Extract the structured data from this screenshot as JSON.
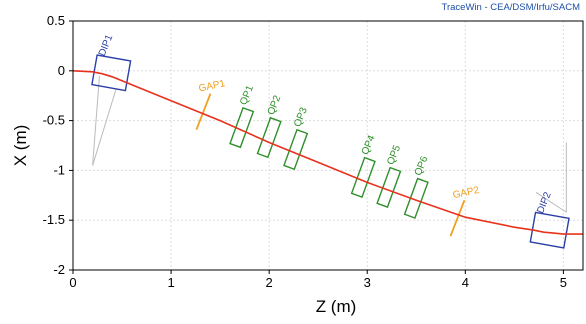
{
  "credit": "TraceWin - CEA/DSM/Irfu/SACM",
  "colors": {
    "beamline": "#e8321e",
    "dipole": "#2b3fa8",
    "quad": "#2f8f2a",
    "gap": "#f0a020",
    "guide": "#bbbbbb"
  },
  "chart_data": {
    "type": "line",
    "xlabel": "Z (m)",
    "ylabel": "X (m)",
    "xlim": [
      0,
      5.2
    ],
    "ylim": [
      -2,
      0.5
    ],
    "xticks": [
      "0",
      "1",
      "2",
      "3",
      "4",
      "5"
    ],
    "yticks": [
      "0.5",
      "0",
      "-0.5",
      "-1",
      "-1.5",
      "-2"
    ],
    "grid": true,
    "series": [
      {
        "x": [
          0,
          0.2,
          0.3,
          0.4,
          0.5,
          0.6,
          1.0,
          1.5,
          2.0,
          2.5,
          3.0,
          3.5,
          4.0,
          4.5,
          4.7,
          4.8,
          4.9,
          5.0,
          5.2
        ],
        "y": [
          0,
          -0.01,
          -0.03,
          -0.06,
          -0.1,
          -0.14,
          -0.3,
          -0.5,
          -0.72,
          -0.92,
          -1.12,
          -1.3,
          -1.47,
          -1.57,
          -1.6,
          -1.62,
          -1.63,
          -1.64,
          -1.64
        ]
      }
    ],
    "elements": [
      {
        "label": "DIP1",
        "type": "dipole",
        "z": 0.39,
        "x": -0.02,
        "angle": 10
      },
      {
        "label": "GAP1",
        "type": "gap",
        "z": 1.33,
        "x": -0.41,
        "angle": 0
      },
      {
        "label": "QP1",
        "type": "quad",
        "z": 1.72,
        "x": -0.57,
        "angle": 0
      },
      {
        "label": "QP2",
        "type": "quad",
        "z": 2.0,
        "x": -0.67,
        "angle": 0
      },
      {
        "label": "QP3",
        "type": "quad",
        "z": 2.27,
        "x": -0.79,
        "angle": 0
      },
      {
        "label": "QP4",
        "type": "quad",
        "z": 2.96,
        "x": -1.07,
        "angle": 0
      },
      {
        "label": "QP5",
        "type": "quad",
        "z": 3.22,
        "x": -1.17,
        "angle": 0
      },
      {
        "label": "QP6",
        "type": "quad",
        "z": 3.5,
        "x": -1.28,
        "angle": 0
      },
      {
        "label": "GAP2",
        "type": "gap",
        "z": 3.92,
        "x": -1.48,
        "angle": 0
      },
      {
        "label": "DIP2",
        "type": "dipole",
        "z": 4.86,
        "x": -1.6,
        "angle": 10
      }
    ]
  }
}
